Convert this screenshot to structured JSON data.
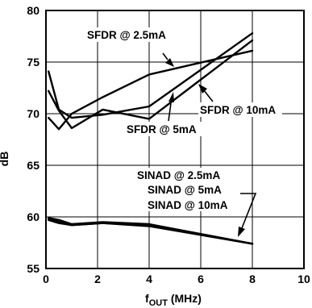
{
  "chart_data": {
    "type": "line",
    "xlabel_main": "f",
    "xlabel_sub": "OUT",
    "xlabel_unit": " (MHz)",
    "ylabel": "dB",
    "xlim": [
      0,
      10
    ],
    "ylim": [
      55,
      80
    ],
    "x_ticks": [
      0,
      2,
      4,
      6,
      8,
      10
    ],
    "y_ticks": [
      55,
      60,
      65,
      70,
      75,
      80
    ],
    "grid": true,
    "series": [
      {
        "name": "SFDR @ 2.5mA",
        "x": [
          0.1,
          0.5,
          1,
          2.2,
          4,
          8
        ],
        "y": [
          69.6,
          68.5,
          70,
          71.6,
          73.8,
          76.1
        ]
      },
      {
        "name": "SFDR @ 5mA",
        "x": [
          0.1,
          0.5,
          1,
          2.2,
          4,
          8
        ],
        "y": [
          72.2,
          70.3,
          68.6,
          70.4,
          69.5,
          77.1
        ]
      },
      {
        "name": "SFDR @ 10mA",
        "x": [
          0.1,
          0.5,
          1,
          2.2,
          4,
          8
        ],
        "y": [
          74.1,
          70.4,
          69.6,
          69.9,
          70.7,
          77.8
        ]
      },
      {
        "name": "SINAD @ 2.5mA",
        "x": [
          0.1,
          0.5,
          1,
          2.2,
          4,
          8
        ],
        "y": [
          59.9,
          59.7,
          59.3,
          59.5,
          59.3,
          57.4
        ]
      },
      {
        "name": "SINAD @ 5mA",
        "x": [
          0.1,
          0.5,
          1,
          2.2,
          4,
          8
        ],
        "y": [
          59.8,
          59.5,
          59.2,
          59.4,
          59.2,
          57.4
        ]
      },
      {
        "name": "SINAD @ 10mA",
        "x": [
          0.1,
          0.5,
          1,
          2.2,
          4,
          8
        ],
        "y": [
          59.7,
          59.4,
          59.2,
          59.4,
          59.1,
          57.4
        ]
      }
    ],
    "annotations": {
      "sfdr_25": "SFDR @ 2.5mA",
      "sfdr_5": "SFDR @ 5mA",
      "sfdr_10": "SFDR @ 10mA",
      "sinad_25": "SINAD @ 2.5mA",
      "sinad_5": "SINAD @ 5mA",
      "sinad_10": "SINAD @ 10mA"
    }
  }
}
